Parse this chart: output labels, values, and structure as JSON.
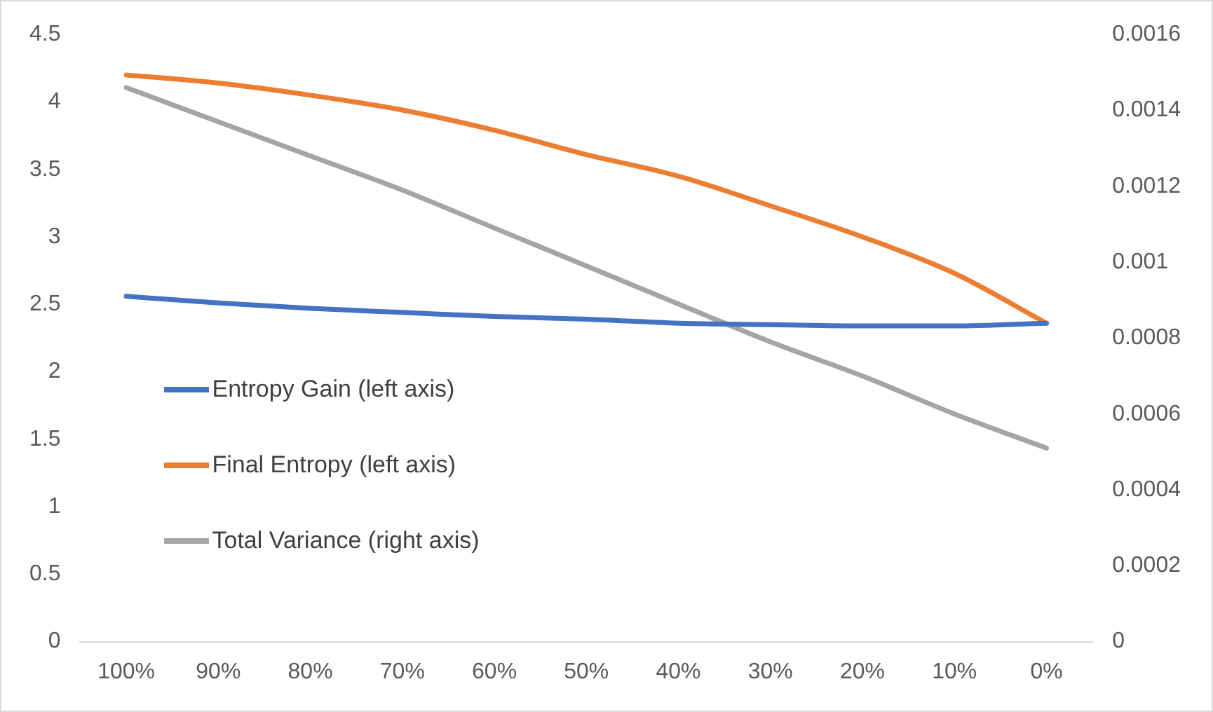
{
  "chart_data": {
    "type": "line",
    "categories": [
      "100%",
      "90%",
      "80%",
      "70%",
      "60%",
      "50%",
      "40%",
      "30%",
      "20%",
      "10%",
      "0%"
    ],
    "series": [
      {
        "name": "Entropy Gain (left axis)",
        "color": "#4472c4",
        "values": [
          2.56,
          2.51,
          2.47,
          2.44,
          2.41,
          2.39,
          2.36,
          2.35,
          2.34,
          2.34,
          2.36
        ]
      },
      {
        "name": "Final Entropy (left axis)",
        "color": "#ed7d31",
        "values": [
          4.2,
          4.14,
          4.05,
          3.94,
          3.79,
          3.61,
          3.45,
          3.23,
          3.0,
          2.73,
          2.36
        ]
      },
      {
        "name": "Total Variance (right axis)",
        "color": "#a5a5a5",
        "axis": "y2",
        "values": [
          0.00146,
          0.00137,
          0.00128,
          0.00119,
          0.00109,
          0.00099,
          0.00089,
          0.00079,
          0.0007,
          0.0006,
          0.00051
        ]
      }
    ],
    "ylim": [
      0,
      4.5
    ],
    "yticks": [
      0,
      0.5,
      1,
      1.5,
      2,
      2.5,
      3,
      3.5,
      4,
      4.5
    ],
    "y2lim": [
      0,
      0.0016
    ],
    "y2ticks": [
      0,
      0.0002,
      0.0004,
      0.0006,
      0.0008,
      0.001,
      0.0012,
      0.0014,
      0.0016
    ],
    "grid": false,
    "legend": "bottom left",
    "marker": "none",
    "line_style": "solid"
  }
}
